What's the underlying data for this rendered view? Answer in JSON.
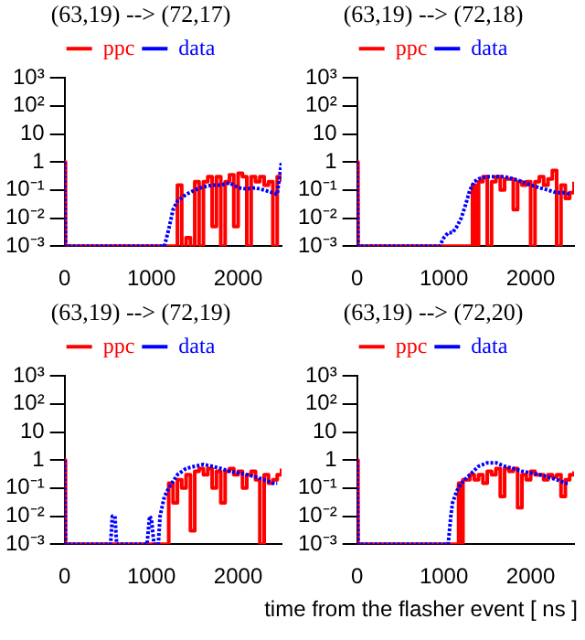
{
  "chart_data": [
    {
      "type": "line",
      "title": "(63,19) --> (72,17)",
      "xlim": [
        0,
        2500
      ],
      "xticks": [
        0,
        1000,
        2000
      ],
      "ylim": [
        0.001,
        1000
      ],
      "yticks": [
        {
          "value": 1000,
          "label": "10³"
        },
        {
          "value": 100,
          "label": "10²"
        },
        {
          "value": 10,
          "label": "10"
        },
        {
          "value": 1,
          "label": "1"
        },
        {
          "value": 0.1,
          "label": "10⁻¹"
        },
        {
          "value": 0.01,
          "label": "10⁻²"
        },
        {
          "value": 0.001,
          "label": "10⁻³"
        }
      ],
      "log": true,
      "grid": false,
      "legend": "top",
      "series": [
        {
          "name": "ppc",
          "type": "step",
          "color": "#ff0000",
          "x": [
            0,
            10,
            1250,
            1300,
            1350,
            1400,
            1450,
            1500,
            1550,
            1600,
            1650,
            1700,
            1750,
            1800,
            1850,
            1900,
            1950,
            2000,
            2050,
            2100,
            2150,
            2200,
            2250,
            2300,
            2350,
            2400,
            2450,
            2500
          ],
          "values": [
            1,
            0.001,
            0.001,
            0.15,
            0.001,
            0.002,
            0.001,
            0.2,
            0.001,
            0.2,
            0.3,
            0.005,
            0.3,
            0.001,
            0.2,
            0.35,
            0.005,
            0.4,
            0.3,
            0.001,
            0.3,
            0.2,
            0.3,
            0.15,
            0.2,
            0.001,
            0.3,
            0.2
          ]
        },
        {
          "name": "data",
          "type": "line",
          "line_style": "dotted",
          "color": "#0000ff",
          "x": [
            0,
            10,
            1150,
            1200,
            1250,
            1300,
            1400,
            1500,
            1600,
            1700,
            1800,
            1900,
            2000,
            2100,
            2200,
            2300,
            2400,
            2450,
            2500
          ],
          "values": [
            1,
            0.001,
            0.001,
            0.004,
            0.02,
            0.04,
            0.07,
            0.1,
            0.13,
            0.15,
            0.15,
            0.18,
            0.12,
            0.11,
            0.12,
            0.1,
            0.08,
            0.07,
            1
          ]
        }
      ]
    },
    {
      "type": "line",
      "title": "(63,19) --> (72,18)",
      "xlim": [
        0,
        2500
      ],
      "xticks": [
        0,
        1000,
        2000
      ],
      "ylim": [
        0.001,
        1000
      ],
      "yticks": [
        {
          "value": 1000,
          "label": "10³"
        },
        {
          "value": 100,
          "label": "10²"
        },
        {
          "value": 10,
          "label": "10"
        },
        {
          "value": 1,
          "label": "1"
        },
        {
          "value": 0.1,
          "label": "10⁻¹"
        },
        {
          "value": 0.01,
          "label": "10⁻²"
        },
        {
          "value": 0.001,
          "label": "10⁻³"
        }
      ],
      "log": true,
      "grid": false,
      "legend": "top",
      "series": [
        {
          "name": "ppc",
          "type": "step",
          "color": "#ff0000",
          "x": [
            0,
            10,
            1300,
            1330,
            1360,
            1400,
            1450,
            1500,
            1550,
            1600,
            1650,
            1700,
            1750,
            1800,
            1850,
            1900,
            1950,
            2000,
            2050,
            2100,
            2150,
            2200,
            2250,
            2300,
            2350,
            2400,
            2450,
            2500
          ],
          "values": [
            1,
            0.001,
            0.001,
            0.15,
            0.001,
            0.2,
            0.3,
            0.001,
            0.2,
            0.3,
            0.1,
            0.25,
            0.25,
            0.02,
            0.2,
            0.15,
            0.2,
            0.001,
            0.2,
            0.3,
            0.15,
            0.25,
            0.5,
            0.001,
            0.15,
            0.05,
            0.08,
            0.2
          ]
        },
        {
          "name": "data",
          "type": "line",
          "line_style": "dotted",
          "color": "#0000ff",
          "x": [
            0,
            10,
            950,
            1000,
            1050,
            1100,
            1150,
            1200,
            1250,
            1300,
            1350,
            1400,
            1500,
            1600,
            1700,
            1800,
            1900,
            2000,
            2100,
            2200,
            2300,
            2400,
            2450
          ],
          "values": [
            1,
            0.001,
            0.001,
            0.002,
            0.003,
            0.003,
            0.005,
            0.01,
            0.03,
            0.1,
            0.2,
            0.25,
            0.3,
            0.3,
            0.3,
            0.25,
            0.2,
            0.15,
            0.12,
            0.1,
            0.08,
            0.08,
            0.07
          ]
        }
      ]
    },
    {
      "type": "line",
      "title": "(63,19) --> (72,19)",
      "xlim": [
        0,
        2500
      ],
      "xticks": [
        0,
        1000,
        2000
      ],
      "ylim": [
        0.001,
        1000
      ],
      "yticks": [
        {
          "value": 1000,
          "label": "10³"
        },
        {
          "value": 100,
          "label": "10²"
        },
        {
          "value": 10,
          "label": "10"
        },
        {
          "value": 1,
          "label": "1"
        },
        {
          "value": 0.1,
          "label": "10⁻¹"
        },
        {
          "value": 0.01,
          "label": "10⁻²"
        },
        {
          "value": 0.001,
          "label": "10⁻³"
        }
      ],
      "log": true,
      "grid": false,
      "legend": "top",
      "series": [
        {
          "name": "ppc",
          "type": "step",
          "color": "#ff0000",
          "x": [
            0,
            10,
            1180,
            1200,
            1250,
            1300,
            1350,
            1400,
            1450,
            1500,
            1550,
            1600,
            1650,
            1700,
            1750,
            1800,
            1850,
            1900,
            1950,
            2000,
            2050,
            2100,
            2150,
            2200,
            2250,
            2300,
            2350,
            2400,
            2450,
            2500
          ],
          "values": [
            1,
            0.001,
            0.001,
            0.15,
            0.03,
            0.2,
            0.1,
            0.3,
            0.003,
            0.4,
            0.5,
            0.3,
            0.5,
            0.1,
            0.4,
            0.03,
            0.4,
            0.5,
            0.3,
            0.4,
            0.1,
            0.3,
            0.4,
            0.2,
            0.001,
            0.3,
            0.15,
            0.2,
            0.3,
            0.5
          ]
        },
        {
          "name": "data",
          "type": "line",
          "line_style": "dotted",
          "color": "#0000ff",
          "x": [
            0,
            10,
            530,
            550,
            580,
            600,
            950,
            980,
            1000,
            1030,
            1080,
            1100,
            1150,
            1200,
            1300,
            1400,
            1500,
            1600,
            1700,
            1800,
            1900,
            2000,
            2100,
            2200,
            2300,
            2400,
            2450
          ],
          "values": [
            1,
            0.001,
            0.001,
            0.01,
            0.01,
            0.001,
            0.001,
            0.01,
            0.008,
            0.001,
            0.001,
            0.01,
            0.05,
            0.1,
            0.3,
            0.5,
            0.6,
            0.7,
            0.6,
            0.5,
            0.4,
            0.35,
            0.3,
            0.25,
            0.2,
            0.15,
            0.15
          ]
        }
      ]
    },
    {
      "type": "line",
      "title": "(63,19) --> (72,20)",
      "xlabel": "time from the flasher event [ ns ]",
      "xlim": [
        0,
        2500
      ],
      "xticks": [
        0,
        1000,
        2000
      ],
      "ylim": [
        0.001,
        1000
      ],
      "yticks": [
        {
          "value": 1000,
          "label": "10³"
        },
        {
          "value": 100,
          "label": "10²"
        },
        {
          "value": 10,
          "label": "10"
        },
        {
          "value": 1,
          "label": "1"
        },
        {
          "value": 0.1,
          "label": "10⁻¹"
        },
        {
          "value": 0.01,
          "label": "10⁻²"
        },
        {
          "value": 0.001,
          "label": "10⁻³"
        }
      ],
      "log": true,
      "grid": false,
      "legend": "top",
      "series": [
        {
          "name": "ppc",
          "type": "step",
          "color": "#ff0000",
          "x": [
            0,
            10,
            1150,
            1170,
            1200,
            1220,
            1300,
            1350,
            1400,
            1450,
            1500,
            1550,
            1600,
            1650,
            1700,
            1750,
            1800,
            1850,
            1900,
            1950,
            2000,
            2050,
            2100,
            2150,
            2200,
            2250,
            2300,
            2350,
            2400,
            2450,
            2500
          ],
          "values": [
            1,
            0.001,
            0.001,
            0.15,
            0.001,
            0.2,
            0.3,
            0.2,
            0.3,
            0.15,
            0.4,
            0.3,
            0.5,
            0.05,
            0.5,
            0.4,
            0.5,
            0.02,
            0.3,
            0.2,
            0.4,
            0.3,
            0.3,
            0.2,
            0.3,
            0.25,
            0.3,
            0.05,
            0.2,
            0.3,
            0.4
          ]
        },
        {
          "name": "data",
          "type": "line",
          "line_style": "dotted",
          "color": "#0000ff",
          "x": [
            0,
            10,
            1050,
            1080,
            1100,
            1150,
            1200,
            1300,
            1400,
            1500,
            1600,
            1700,
            1800,
            1900,
            2000,
            2100,
            2200,
            2300,
            2400,
            2450
          ],
          "values": [
            1,
            0.001,
            0.001,
            0.01,
            0.03,
            0.08,
            0.15,
            0.3,
            0.6,
            0.8,
            0.8,
            0.6,
            0.5,
            0.4,
            0.35,
            0.3,
            0.25,
            0.2,
            0.15,
            0.15
          ]
        }
      ]
    }
  ]
}
